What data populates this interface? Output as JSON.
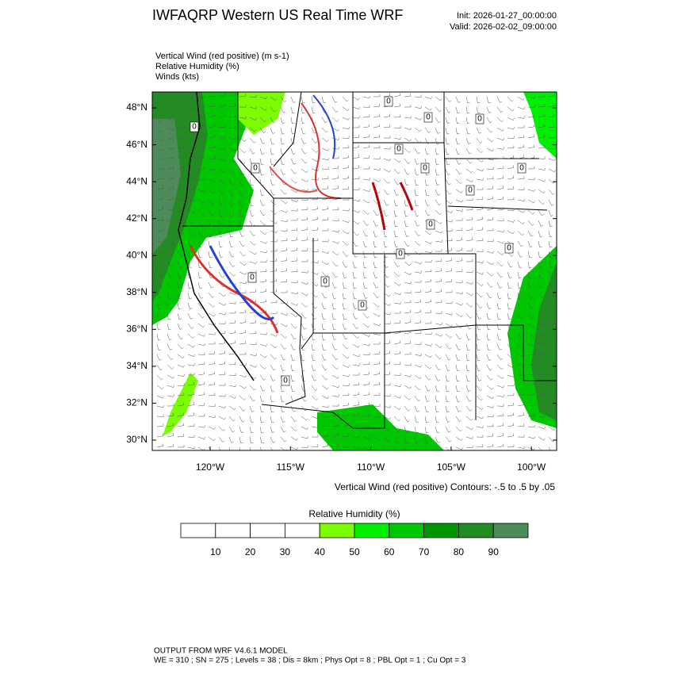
{
  "header": {
    "title": "IWFAQRP Western US Real Time WRF",
    "init": "Init: 2026-01-27_00:00:00",
    "valid": "Valid: 2026-02-02_09:00:00"
  },
  "fields": [
    "Vertical Wind (red positive)   (m s-1)",
    "Relative Humidity   (%)",
    "Winds   (kts)"
  ],
  "map": {
    "lat_labels": [
      "30°N",
      "32°N",
      "34°N",
      "36°N",
      "38°N",
      "40°N",
      "42°N",
      "44°N",
      "46°N",
      "48°N"
    ],
    "lon_labels": [
      "120°W",
      "115°W",
      "110°W",
      "105°W",
      "100°W"
    ],
    "contour_labels": [
      "0",
      "0",
      "0",
      "0",
      "0",
      "0",
      "0",
      "0",
      "0",
      "0",
      "0",
      "0",
      "0",
      "0",
      "0",
      "0"
    ],
    "contour_note": "Vertical Wind (red positive) Contours: -.5 to .5 by .05"
  },
  "colorbar": {
    "title": "Relative Humidity   (%)",
    "labels": [
      "10",
      "20",
      "30",
      "40",
      "50",
      "60",
      "70",
      "80",
      "90"
    ],
    "colors": [
      "#ffffff",
      "#ffffff",
      "#ffffff",
      "#ffffff",
      "#7cfc00",
      "#00ee00",
      "#00c800",
      "#009600",
      "#228b22",
      "#4e8b5a"
    ]
  },
  "footer": {
    "line1": "OUTPUT FROM WRF V4.6.1 MODEL",
    "line2": "WE = 310 ; SN = 275 ; Levels = 38 ; Dis = 8km ; Phys Opt = 8 ; PBL Opt = 1 ; Cu Opt = 3"
  }
}
